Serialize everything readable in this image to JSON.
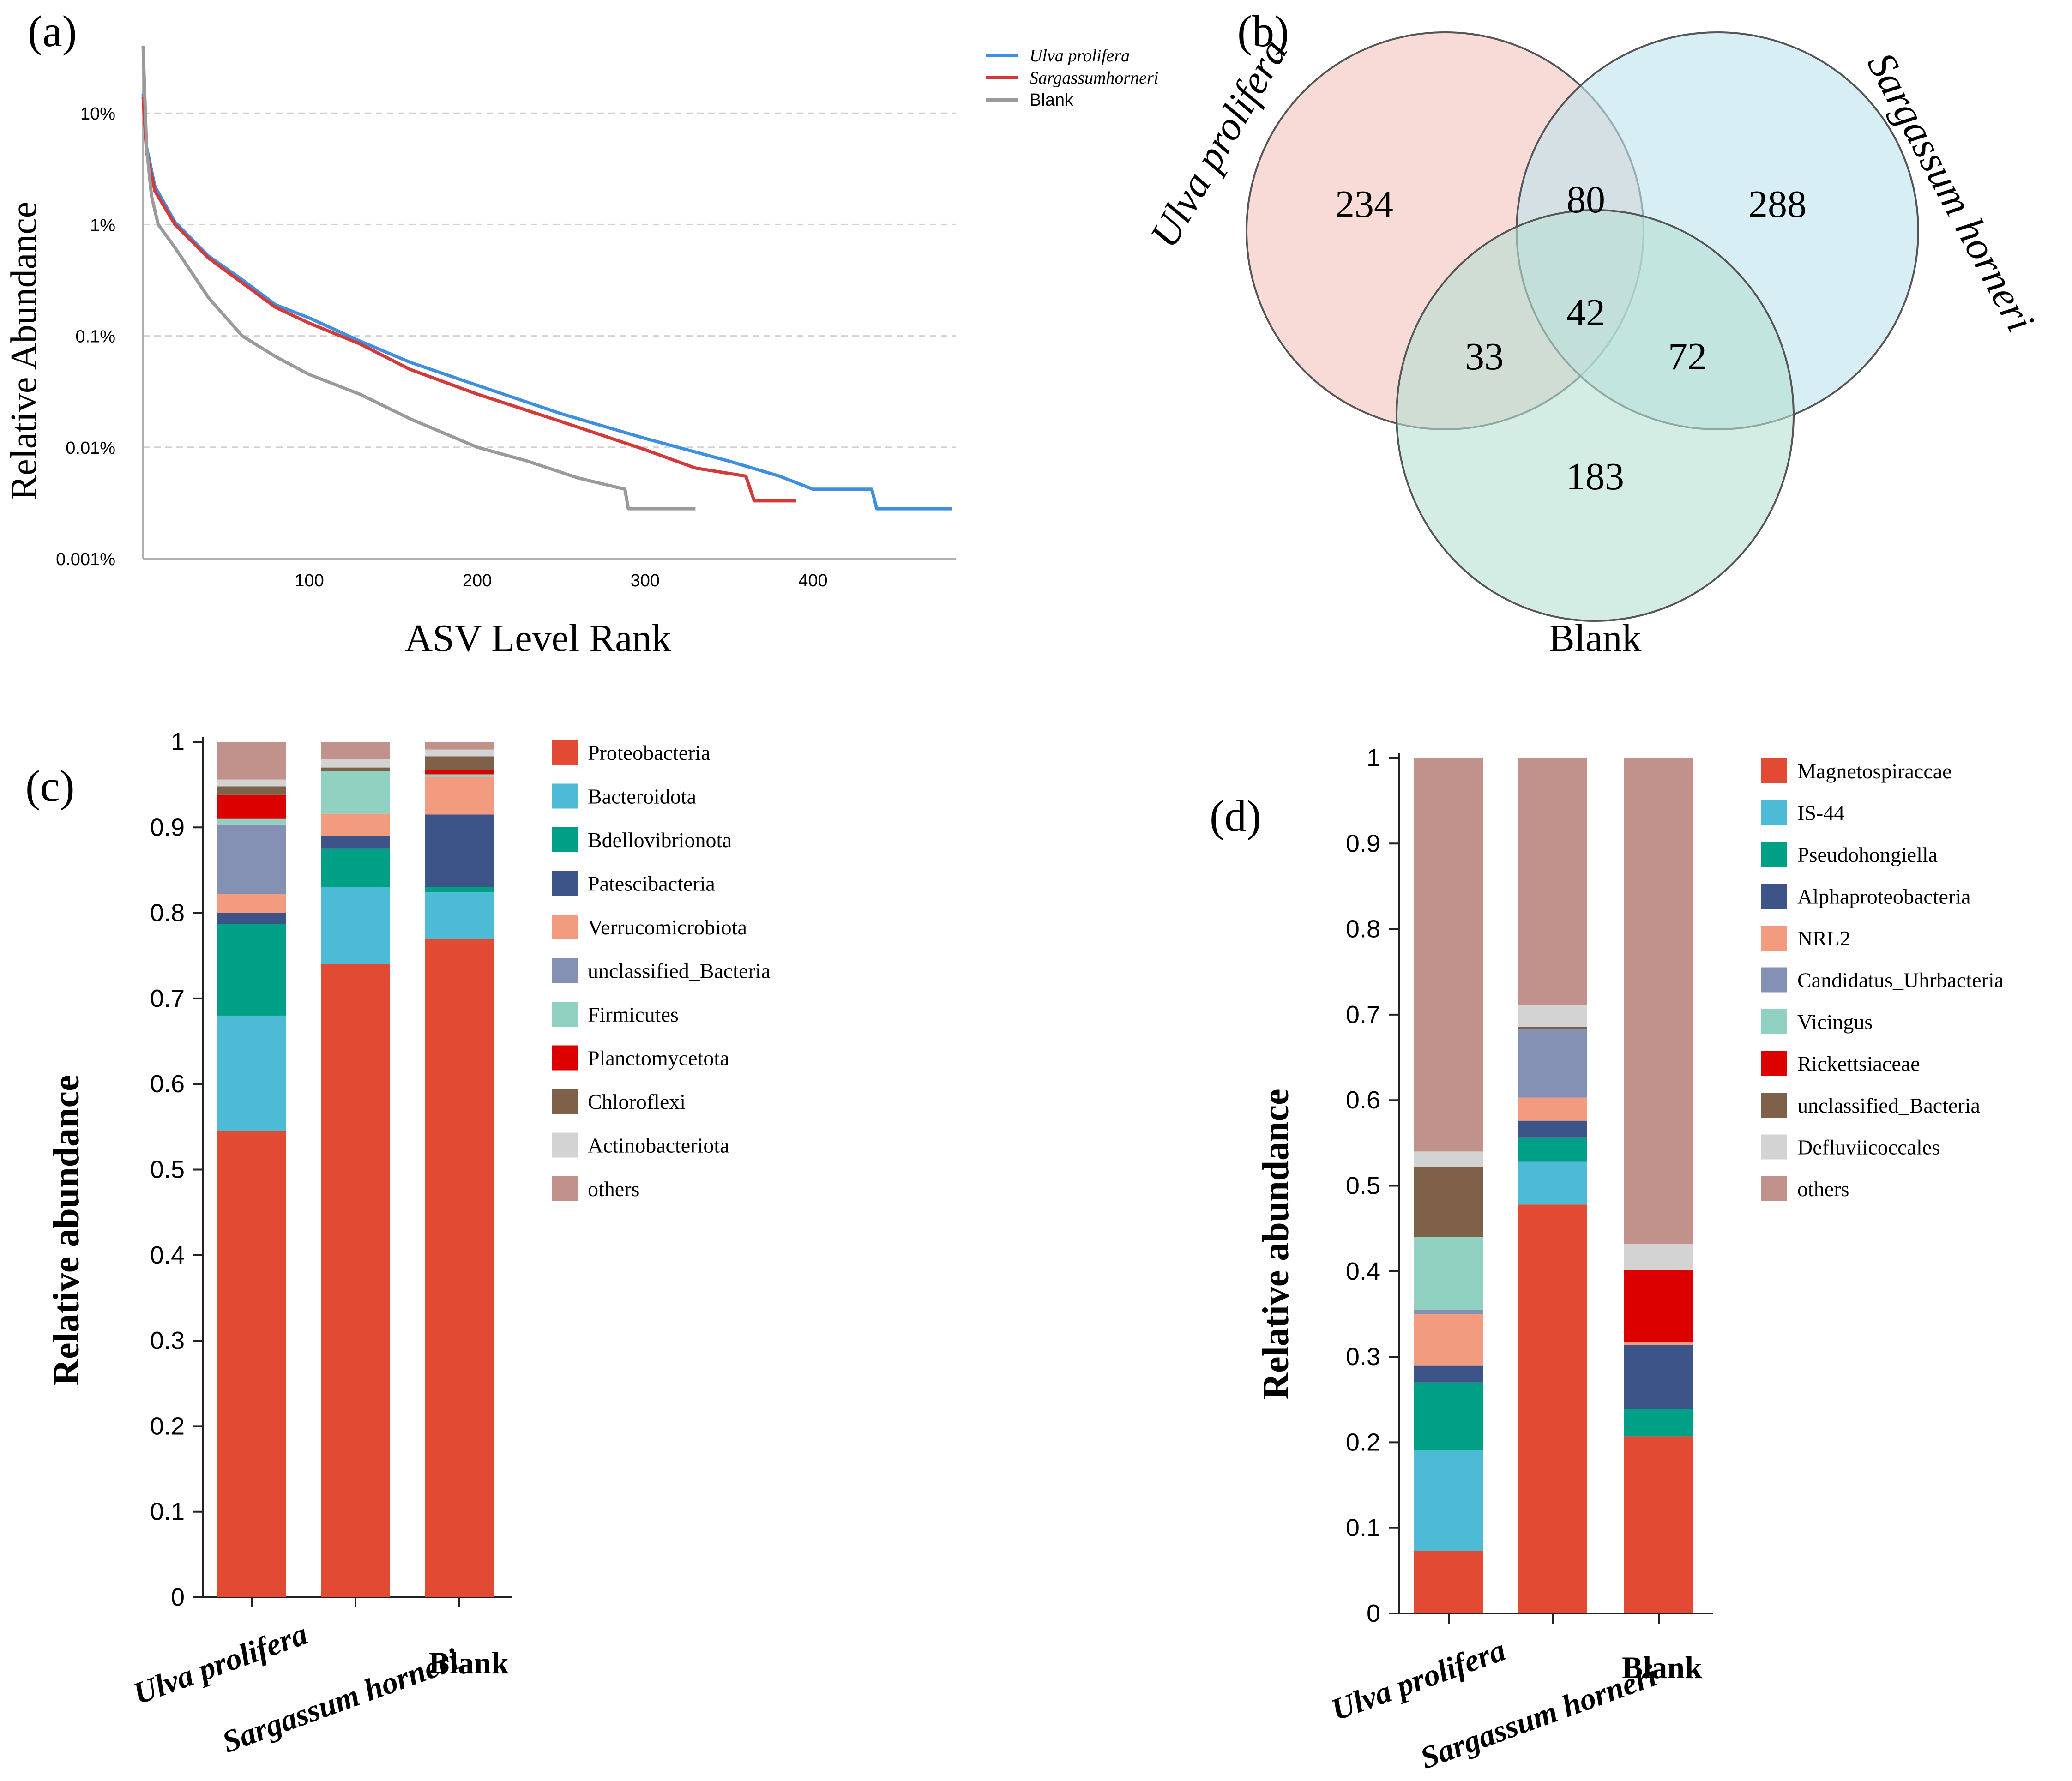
{
  "figure": {
    "panels": [
      "a",
      "b",
      "c",
      "d"
    ]
  },
  "chart_data": [
    {
      "id": "a",
      "panel_label": "(a)",
      "type": "line",
      "xlabel": "ASV Level Rank",
      "ylabel": "Relative Abundance",
      "yscale": "log",
      "ylim": [
        0.001,
        40
      ],
      "xlim": [
        1,
        485
      ],
      "xticks": [
        100,
        200,
        300,
        400
      ],
      "yticks": [
        {
          "v": 0.001,
          "label": "0.001%"
        },
        {
          "v": 0.01,
          "label": "0.01%"
        },
        {
          "v": 0.1,
          "label": "0.1%"
        },
        {
          "v": 1,
          "label": "1%"
        },
        {
          "v": 10,
          "label": "10%"
        }
      ],
      "grid": "horizontal-dashed",
      "legend": "top-right",
      "series": [
        {
          "name": "Ulva prolifera",
          "color": "#3f8fe0",
          "x": [
            1,
            3,
            8,
            20,
            40,
            60,
            80,
            100,
            130,
            160,
            200,
            250,
            300,
            350,
            380,
            400,
            435,
            438,
            483
          ],
          "y": [
            15,
            5,
            2.2,
            1.05,
            0.52,
            0.32,
            0.19,
            0.145,
            0.09,
            0.058,
            0.036,
            0.02,
            0.012,
            0.0075,
            0.0055,
            0.0042,
            0.0042,
            0.0028,
            0.0028
          ]
        },
        {
          "name": "Sargassumhorneri",
          "color": "#d43a3a",
          "x": [
            1,
            3,
            8,
            20,
            40,
            60,
            80,
            100,
            130,
            160,
            200,
            250,
            300,
            330,
            360,
            365,
            390
          ],
          "y": [
            14,
            4.5,
            2.0,
            1.0,
            0.5,
            0.3,
            0.18,
            0.13,
            0.085,
            0.05,
            0.03,
            0.017,
            0.0095,
            0.0065,
            0.0055,
            0.0033,
            0.0033
          ]
        },
        {
          "name": "Blank",
          "color": "#9a9a9a",
          "x": [
            1,
            3,
            6,
            10,
            20,
            40,
            60,
            80,
            100,
            130,
            160,
            200,
            230,
            260,
            288,
            290,
            330
          ],
          "y": [
            40,
            5,
            1.8,
            1.0,
            0.62,
            0.22,
            0.1,
            0.065,
            0.045,
            0.03,
            0.018,
            0.01,
            0.0075,
            0.0053,
            0.0042,
            0.0028,
            0.0028
          ]
        }
      ]
    },
    {
      "id": "b",
      "panel_label": "(b)",
      "type": "venn",
      "sets": [
        {
          "name": "Ulva prolifera",
          "color": "#f4c4bd"
        },
        {
          "name": "Sargassum horneri",
          "color": "#bfe3ee"
        },
        {
          "name": "Blank",
          "color": "#b5e0d2"
        }
      ],
      "regions": [
        {
          "sets": [
            "Ulva prolifera"
          ],
          "value": "234"
        },
        {
          "sets": [
            "Sargassum horneri"
          ],
          "value": "288"
        },
        {
          "sets": [
            "Blank"
          ],
          "value": "183"
        },
        {
          "sets": [
            "Ulva prolifera",
            "Sargassum horneri"
          ],
          "value": "80"
        },
        {
          "sets": [
            "Ulva prolifera",
            "Blank"
          ],
          "value": "33"
        },
        {
          "sets": [
            "Sargassum horneri",
            "Blank"
          ],
          "value": "72"
        },
        {
          "sets": [
            "Ulva prolifera",
            "Sargassum horneri",
            "Blank"
          ],
          "value": "42"
        }
      ]
    },
    {
      "id": "c",
      "panel_label": "(c)",
      "type": "bar",
      "stacked": true,
      "ylabel": "Relative abundance",
      "ylim": [
        0,
        1
      ],
      "yticks": [
        "0",
        "0.1",
        "0.2",
        "0.3",
        "0.4",
        "0.5",
        "0.6",
        "0.7",
        "0.8",
        "0.9",
        "1"
      ],
      "categories": [
        "Ulva prolifera",
        "Sargassum horneri",
        "Blank"
      ],
      "legend": "right",
      "series": [
        {
          "name": "Proteobacteria",
          "color": "#e34a33",
          "values": [
            0.545,
            0.74,
            0.77
          ]
        },
        {
          "name": "Bacteroidota",
          "color": "#4dbbd5",
          "values": [
            0.135,
            0.09,
            0.054
          ]
        },
        {
          "name": "Bdellovibrionota",
          "color": "#00a087",
          "values": [
            0.107,
            0.045,
            0.006
          ]
        },
        {
          "name": "Patescibacteria",
          "color": "#3c5488",
          "values": [
            0.013,
            0.015,
            0.085
          ]
        },
        {
          "name": "Verrucomicrobiota",
          "color": "#f39b7f",
          "values": [
            0.022,
            0.026,
            0.044
          ]
        },
        {
          "name": "unclassified_Bacteria",
          "color": "#8491b4",
          "values": [
            0.081,
            0.0,
            0.0
          ]
        },
        {
          "name": "Firmicutes",
          "color": "#91d1c2",
          "values": [
            0.007,
            0.05,
            0.003
          ]
        },
        {
          "name": "Planctomycetota",
          "color": "#dc0000",
          "values": [
            0.028,
            0.0,
            0.005
          ]
        },
        {
          "name": "Chloroflexi",
          "color": "#7e6148",
          "values": [
            0.01,
            0.004,
            0.016
          ]
        },
        {
          "name": "Actinobacteriota",
          "color": "#d3d3d3",
          "values": [
            0.008,
            0.01,
            0.008
          ]
        },
        {
          "name": "others",
          "color": "#c1928b",
          "values": [
            0.044,
            0.02,
            0.009
          ]
        }
      ]
    },
    {
      "id": "d",
      "panel_label": "(d)",
      "type": "bar",
      "stacked": true,
      "ylabel": "Relative abundance",
      "ylim": [
        0,
        1
      ],
      "yticks": [
        "0",
        "0.1",
        "0.2",
        "0.3",
        "0.4",
        "0.5",
        "0.6",
        "0.7",
        "0.8",
        "0.9",
        "1"
      ],
      "categories": [
        "Ulva prolifera",
        "Sargassum horneri",
        "Blank"
      ],
      "legend": "right",
      "series": [
        {
          "name": "Magnetospiraccae",
          "color": "#e34a33",
          "values": [
            0.073,
            0.478,
            0.207
          ]
        },
        {
          "name": "IS-44",
          "color": "#4dbbd5",
          "values": [
            0.118,
            0.05,
            0.0
          ]
        },
        {
          "name": "Pseudohongiella",
          "color": "#00a087",
          "values": [
            0.079,
            0.028,
            0.032
          ]
        },
        {
          "name": "Alphaproteobacteria",
          "color": "#3c5488",
          "values": [
            0.02,
            0.02,
            0.075
          ]
        },
        {
          "name": "NRL2",
          "color": "#f39b7f",
          "values": [
            0.06,
            0.027,
            0.003
          ]
        },
        {
          "name": "Candidatus_Uhrbacteria",
          "color": "#8491b4",
          "values": [
            0.005,
            0.08,
            0.0
          ]
        },
        {
          "name": "Vicingus",
          "color": "#91d1c2",
          "values": [
            0.085,
            0.0,
            0.0
          ]
        },
        {
          "name": "Rickettsiaceae",
          "color": "#dc0000",
          "values": [
            0.0,
            0.0,
            0.085
          ]
        },
        {
          "name": "unclassified_Bacteria",
          "color": "#7e6148",
          "values": [
            0.082,
            0.003,
            0.0
          ]
        },
        {
          "name": "Defluviicoccales",
          "color": "#d3d3d3",
          "values": [
            0.018,
            0.025,
            0.03
          ]
        },
        {
          "name": "others",
          "color": "#c1928b",
          "values": [
            0.46,
            0.289,
            0.568
          ]
        }
      ]
    }
  ]
}
